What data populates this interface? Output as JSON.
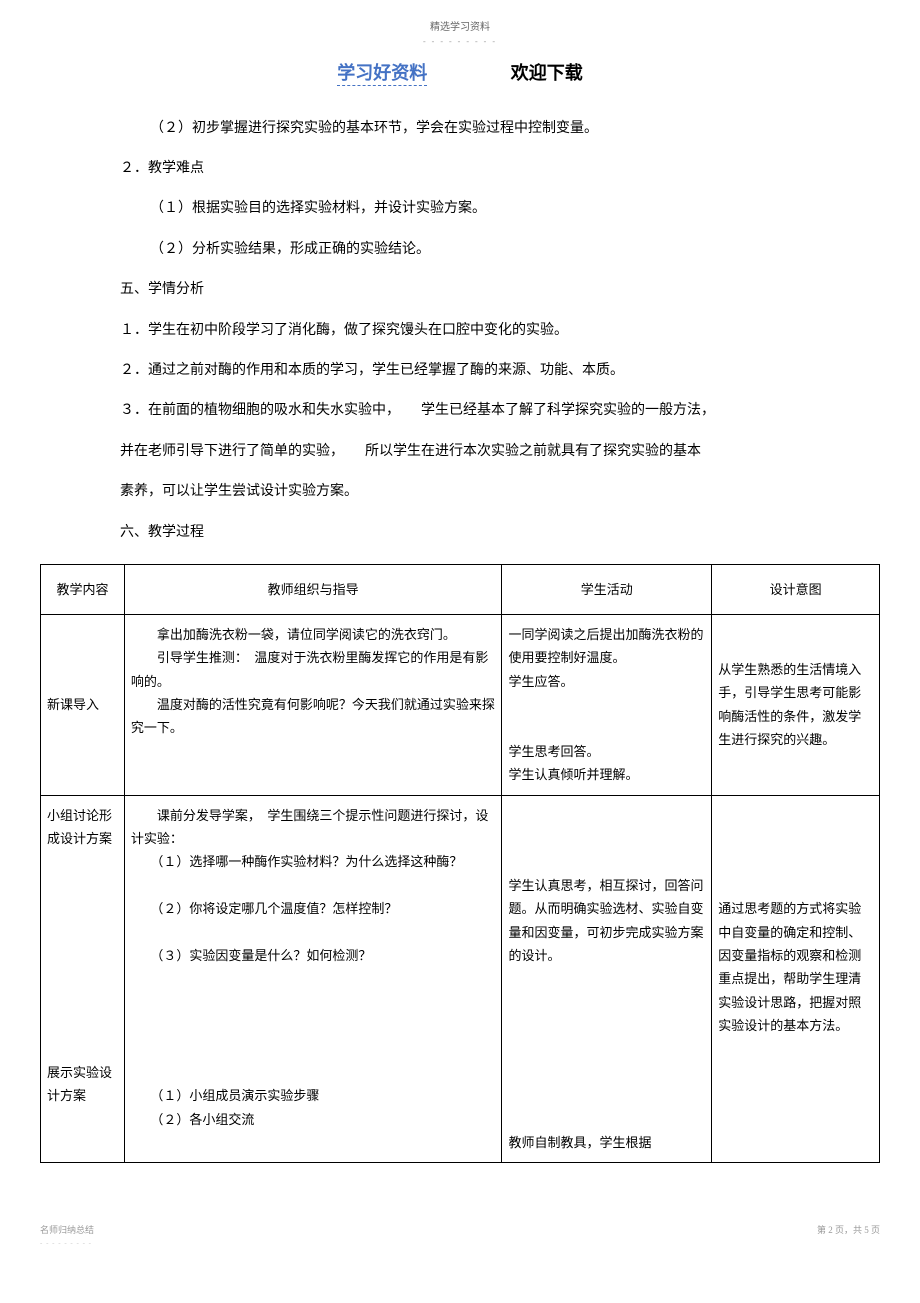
{
  "header": {
    "small_text": "精选学习资料",
    "dots": "- - - - - - - - -"
  },
  "title": {
    "left": "学习好资料",
    "right": "欢迎下载"
  },
  "paragraphs": {
    "p1": "（２）初步掌握进行探究实验的基本环节，学会在实验过程中控制变量。",
    "p2": "２．教学难点",
    "p3": "（１）根据实验目的选择实验材料，并设计实验方案。",
    "p4": "（２）分析实验结果，形成正确的实验结论。",
    "p5": "五、学情分析",
    "p6": "１．学生在初中阶段学习了消化酶，做了探究馒头在口腔中变化的实验。",
    "p7": "２．通过之前对酶的作用和本质的学习，学生已经掌握了酶的来源、功能、本质。",
    "p8": "３．在前面的植物细胞的吸水和失水实验中，　　学生已经基本了解了科学探究实验的一般方法，",
    "p9": "并在老师引导下进行了简单的实验，　　所以学生在进行本次实验之前就具有了探究实验的基本",
    "p10": "素养，可以让学生尝试设计实验方案。",
    "p11": "六、教学过程"
  },
  "table": {
    "headers": {
      "h1": "教学内容",
      "h2": "教师组织与指导",
      "h3": "学生活动",
      "h4": "设计意图"
    },
    "row1": {
      "c1": "新课导入",
      "c2_line1": "　　拿出加酶洗衣粉一袋，请位同学阅读它的洗衣窍门。",
      "c2_line2": "　　引导学生推测：　温度对于洗衣粉里酶发挥它的作用是有影响的。",
      "c2_line3": "　　温度对酶的活性究竟有何影响呢？今天我们就通过实验来探究一下。",
      "c3_line1": "一同学阅读之后提出加酶洗衣粉的使用要控制好温度。",
      "c3_line2": "学生应答。",
      "c3_line3": "学生思考回答。",
      "c3_line4": "学生认真倾听并理解。",
      "c4": "从学生熟悉的生活情境入手，引导学生思考可能影响酶活性的条件，激发学生进行探究的兴趣。"
    },
    "row2": {
      "c1_a": "小组讨论形成设计方案",
      "c1_b": "展示实验设计方案",
      "c2_line1": "　　课前分发导学案，　学生围绕三个提示性问题进行探讨，设计实验：",
      "c2_line2": "　　（１）选择哪一种酶作实验材料？为什么选择这种酶？",
      "c2_line3": "　　（２）你将设定哪几个温度值？怎样控制？",
      "c2_line4": "　　（３）实验因变量是什么？如何检测？",
      "c2_line5": "　　（１）小组成员演示实验步骤",
      "c2_line6": "　　（２）各小组交流",
      "c3_line1": "学生认真思考，相互探讨，回答问题。从而明确实验选材、实验自变量和因变量，可初步完成实验方案的设计。",
      "c3_line2": "教师自制教具，学生根据",
      "c4": "通过思考题的方式将实验中自变量的确定和控制、因变量指标的观察和检测重点提出，帮助学生理清实验设计思路，把握对照实验设计的基本方法。"
    }
  },
  "footer": {
    "left": "名师归纳总结",
    "left_dots": "- - - - - - - - -",
    "right": "第 2 页，共 5 页"
  }
}
